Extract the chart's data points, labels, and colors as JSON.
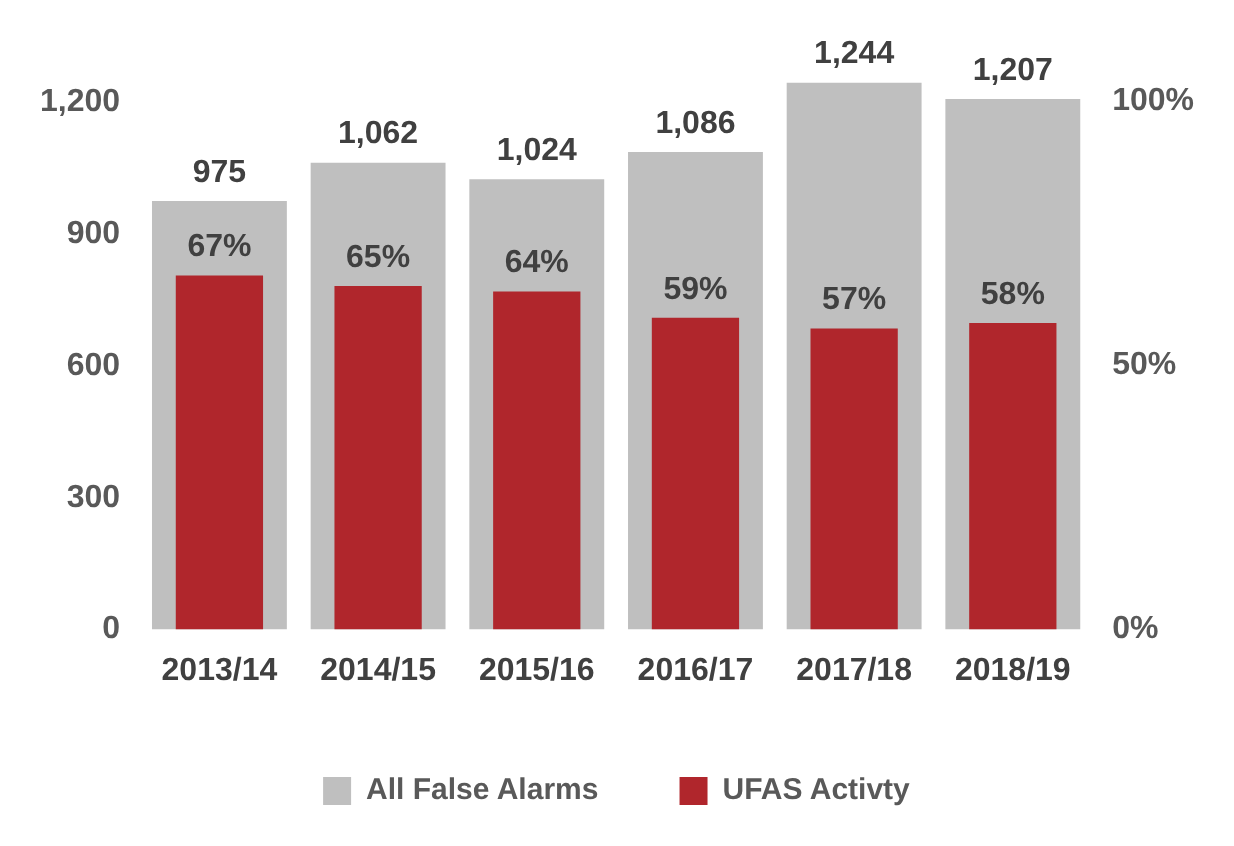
{
  "chart_data": {
    "type": "bar",
    "categories": [
      "2013/14",
      "2014/15",
      "2015/16",
      "2016/17",
      "2017/18",
      "2018/19"
    ],
    "series": [
      {
        "name": "All False Alarms",
        "color": "#bfbfbf",
        "values": [
          975,
          1062,
          1024,
          1086,
          1244,
          1207
        ],
        "value_labels": [
          "975",
          "1,062",
          "1,024",
          "1,086",
          "1,244",
          "1,207"
        ]
      },
      {
        "name": "UFAS Activty",
        "color": "#b0262c",
        "axis": "y2",
        "values": [
          67,
          65,
          64,
          59,
          57,
          58
        ],
        "value_labels": [
          "67%",
          "65%",
          "64%",
          "59%",
          "57%",
          "58%"
        ]
      }
    ],
    "ylim": [
      0,
      1250
    ],
    "yticks": [
      0,
      300,
      600,
      900,
      {
        "value": 1200,
        "label": "1,200"
      }
    ],
    "y2lim": [
      0,
      104
    ],
    "y2ticks": [
      {
        "value": 0,
        "label": "0%"
      },
      {
        "value": 50,
        "label": "50%"
      },
      {
        "value": 100,
        "label": "100%"
      }
    ],
    "grid": false,
    "legend": "bottom"
  }
}
